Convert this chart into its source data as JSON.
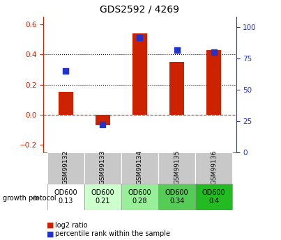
{
  "title": "GDS2592 / 4269",
  "samples": [
    "GSM99132",
    "GSM99133",
    "GSM99134",
    "GSM99135",
    "GSM99136"
  ],
  "log2_ratio": [
    0.15,
    -0.07,
    0.54,
    0.35,
    0.43
  ],
  "percentile_rank": [
    65,
    22,
    92,
    82,
    80
  ],
  "bar_color": "#cc2200",
  "dot_color": "#2233cc",
  "ylim_left": [
    -0.25,
    0.65
  ],
  "ylim_right": [
    0,
    108.33
  ],
  "yticks_left": [
    -0.2,
    0.0,
    0.2,
    0.4,
    0.6
  ],
  "yticks_right": [
    0,
    25,
    50,
    75,
    100
  ],
  "hlines": [
    0.2,
    0.4
  ],
  "zeroline_color": "#cc2200",
  "protocol_labels": [
    "OD600\n0.13",
    "OD600\n0.21",
    "OD600\n0.28",
    "OD600\n0.34",
    "OD600\n0.4"
  ],
  "protocol_colors": [
    "#ffffff",
    "#ccffcc",
    "#99ee99",
    "#55cc55",
    "#22bb22"
  ],
  "background_color": "#ffffff",
  "sample_box_color": "#c8c8c8",
  "bar_width": 0.4,
  "dot_size": 28
}
